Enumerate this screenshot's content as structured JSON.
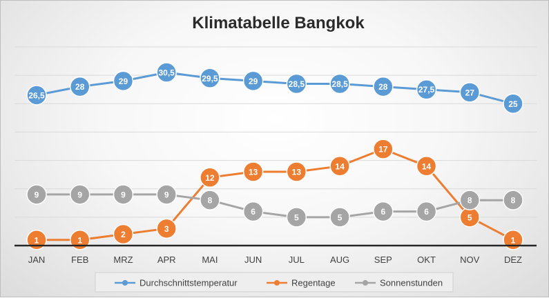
{
  "chart_data": {
    "type": "line",
    "title": "Klimatabelle Bangkok",
    "xlabel": "",
    "ylabel": "",
    "ylim": [
      0,
      35
    ],
    "grid": true,
    "legend_position": "bottom",
    "categories": [
      "JAN",
      "FEB",
      "MRZ",
      "APR",
      "MAI",
      "JUN",
      "JUL",
      "AUG",
      "SEP",
      "OKT",
      "NOV",
      "DEZ"
    ],
    "series": [
      {
        "name": "Durchschnittstemperatur",
        "color": "#5B9BD5",
        "values": [
          26.5,
          28,
          29,
          30.5,
          29.5,
          29,
          28.5,
          28.5,
          28,
          27.5,
          27,
          25
        ],
        "labels": [
          "26,5",
          "28",
          "29",
          "30,5",
          "29,5",
          "29",
          "28,5",
          "28,5",
          "28",
          "27,5",
          "27",
          "25"
        ]
      },
      {
        "name": "Regentage",
        "color": "#ED7D31",
        "values": [
          1,
          1,
          2,
          3,
          12,
          13,
          13,
          14,
          17,
          14,
          5,
          1
        ],
        "labels": [
          "1",
          "1",
          "2",
          "3",
          "12",
          "13",
          "13",
          "14",
          "17",
          "14",
          "5",
          "1"
        ]
      },
      {
        "name": "Sonnenstunden",
        "color": "#A5A5A5",
        "values": [
          9,
          9,
          9,
          9,
          8,
          6,
          5,
          5,
          6,
          6,
          8,
          8
        ],
        "labels": [
          "9",
          "9",
          "9",
          "9",
          "8",
          "6",
          "5",
          "5",
          "6",
          "6",
          "8",
          "8"
        ]
      }
    ]
  }
}
